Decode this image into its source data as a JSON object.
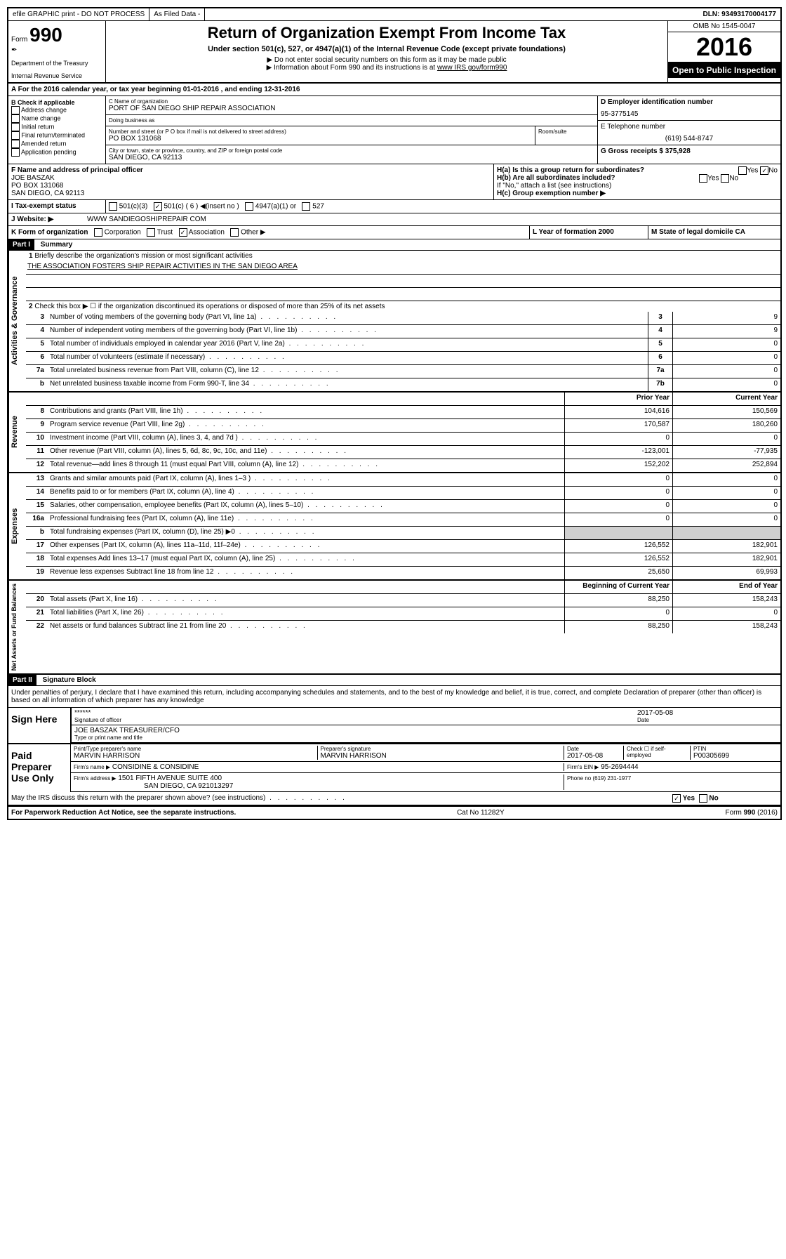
{
  "topbar": {
    "efile": "efile GRAPHIC print - DO NOT PROCESS",
    "asfiled": "As Filed Data -",
    "dln": "DLN: 93493170004177"
  },
  "header": {
    "form_prefix": "Form",
    "form_number": "990",
    "dept1": "Department of the Treasury",
    "dept2": "Internal Revenue Service",
    "title": "Return of Organization Exempt From Income Tax",
    "subtitle": "Under section 501(c), 527, or 4947(a)(1) of the Internal Revenue Code (except private foundations)",
    "note1": "▶ Do not enter social security numbers on this form as it may be made public",
    "note2": "▶ Information about Form 990 and its instructions is at ",
    "note2_link": "www IRS gov/form990",
    "omb": "OMB No 1545-0047",
    "year": "2016",
    "open_public": "Open to Public Inspection"
  },
  "section_a": "A  For the 2016 calendar year, or tax year beginning 01-01-2016   , and ending 12-31-2016",
  "col_b": {
    "title": "B Check if applicable",
    "opt1": "Address change",
    "opt2": "Name change",
    "opt3": "Initial return",
    "opt4": "Final return/terminated",
    "opt5": "Amended return",
    "opt6": "Application pending"
  },
  "col_c": {
    "name_label": "C Name of organization",
    "name": "PORT OF SAN DIEGO SHIP REPAIR ASSOCIATION",
    "dba_label": "Doing business as",
    "addr_label": "Number and street (or P O  box if mail is not delivered to street address)",
    "room_label": "Room/suite",
    "addr": "PO BOX 131068",
    "city_label": "City or town, state or province, country, and ZIP or foreign postal code",
    "city": "SAN DIEGO, CA  92113",
    "officer_label": "F  Name and address of principal officer",
    "officer_name": "JOE BASZAK",
    "officer_addr1": "PO BOX 131068",
    "officer_addr2": "SAN DIEGO, CA  92113"
  },
  "col_d": {
    "ein_label": "D Employer identification number",
    "ein": "95-3775145",
    "phone_label": "E Telephone number",
    "phone": "(619) 544-8747",
    "gross_label": "G Gross receipts $ 375,928"
  },
  "h_section": {
    "ha": "H(a)  Is this a group return for subordinates?",
    "hb": "H(b)  Are all subordinates included?",
    "hb_note": "If \"No,\" attach a list  (see instructions)",
    "hc": "H(c)  Group exemption number ▶"
  },
  "row_i": {
    "label": "I   Tax-exempt status",
    "opt1": "501(c)(3)",
    "opt2": "501(c) ( 6 ) ◀(insert no )",
    "opt3": "4947(a)(1) or",
    "opt4": "527"
  },
  "row_j": {
    "label": "J   Website: ▶",
    "value": "WWW SANDIEGOSHIPREPAIR COM"
  },
  "row_k": {
    "label": "K Form of organization",
    "opt1": "Corporation",
    "opt2": "Trust",
    "opt3": "Association",
    "opt4": "Other ▶",
    "l_label": "L Year of formation  2000",
    "m_label": "M State of legal domicile  CA"
  },
  "part1": {
    "header": "Part I",
    "title": "Summary",
    "q1_label": "1",
    "q1": "Briefly describe the organization's mission or most significant activities",
    "q1_ans": "THE ASSOCIATION FOSTERS SHIP REPAIR ACTIVITIES IN THE SAN DIEGO AREA",
    "q2": "Check this box ▶ ☐  if the organization discontinued its operations or disposed of more than 25% of its net assets",
    "rows_ag": [
      {
        "n": "3",
        "d": "Number of voting members of the governing body (Part VI, line 1a)",
        "b": "3",
        "v": "9"
      },
      {
        "n": "4",
        "d": "Number of independent voting members of the governing body (Part VI, line 1b)",
        "b": "4",
        "v": "9"
      },
      {
        "n": "5",
        "d": "Total number of individuals employed in calendar year 2016 (Part V, line 2a)",
        "b": "5",
        "v": "0"
      },
      {
        "n": "6",
        "d": "Total number of volunteers (estimate if necessary)",
        "b": "6",
        "v": "0"
      },
      {
        "n": "7a",
        "d": "Total unrelated business revenue from Part VIII, column (C), line 12",
        "b": "7a",
        "v": "0"
      },
      {
        "n": "b",
        "d": "Net unrelated business taxable income from Form 990-T, line 34",
        "b": "7b",
        "v": "0"
      }
    ],
    "col_headers": {
      "prior": "Prior Year",
      "current": "Current Year"
    },
    "revenue": [
      {
        "n": "8",
        "d": "Contributions and grants (Part VIII, line 1h)",
        "p": "104,616",
        "c": "150,569"
      },
      {
        "n": "9",
        "d": "Program service revenue (Part VIII, line 2g)",
        "p": "170,587",
        "c": "180,260"
      },
      {
        "n": "10",
        "d": "Investment income (Part VIII, column (A), lines 3, 4, and 7d )",
        "p": "0",
        "c": "0"
      },
      {
        "n": "11",
        "d": "Other revenue (Part VIII, column (A), lines 5, 6d, 8c, 9c, 10c, and 11e)",
        "p": "-123,001",
        "c": "-77,935"
      },
      {
        "n": "12",
        "d": "Total revenue—add lines 8 through 11 (must equal Part VIII, column (A), line 12)",
        "p": "152,202",
        "c": "252,894"
      }
    ],
    "expenses": [
      {
        "n": "13",
        "d": "Grants and similar amounts paid (Part IX, column (A), lines 1–3 )",
        "p": "0",
        "c": "0"
      },
      {
        "n": "14",
        "d": "Benefits paid to or for members (Part IX, column (A), line 4)",
        "p": "0",
        "c": "0"
      },
      {
        "n": "15",
        "d": "Salaries, other compensation, employee benefits (Part IX, column (A), lines 5–10)",
        "p": "0",
        "c": "0"
      },
      {
        "n": "16a",
        "d": "Professional fundraising fees (Part IX, column (A), line 11e)",
        "p": "0",
        "c": "0"
      },
      {
        "n": "b",
        "d": "Total fundraising expenses (Part IX, column (D), line 25) ▶0",
        "p": "",
        "c": ""
      },
      {
        "n": "17",
        "d": "Other expenses (Part IX, column (A), lines 11a–11d, 11f–24e)",
        "p": "126,552",
        "c": "182,901"
      },
      {
        "n": "18",
        "d": "Total expenses  Add lines 13–17 (must equal Part IX, column (A), line 25)",
        "p": "126,552",
        "c": "182,901"
      },
      {
        "n": "19",
        "d": "Revenue less expenses  Subtract line 18 from line 12",
        "p": "25,650",
        "c": "69,993"
      }
    ],
    "net_headers": {
      "beg": "Beginning of Current Year",
      "end": "End of Year"
    },
    "netassets": [
      {
        "n": "20",
        "d": "Total assets (Part X, line 16)",
        "p": "88,250",
        "c": "158,243"
      },
      {
        "n": "21",
        "d": "Total liabilities (Part X, line 26)",
        "p": "0",
        "c": "0"
      },
      {
        "n": "22",
        "d": "Net assets or fund balances  Subtract line 21 from line 20",
        "p": "88,250",
        "c": "158,243"
      }
    ]
  },
  "part2": {
    "header": "Part II",
    "title": "Signature Block",
    "declaration": "Under penalties of perjury, I declare that I have examined this return, including accompanying schedules and statements, and to the best of my knowledge and belief, it is true, correct, and complete  Declaration of preparer (other than officer) is based on all information of which preparer has any knowledge",
    "sign_here": "Sign Here",
    "stars": "******",
    "sig_officer": "Signature of officer",
    "date": "2017-05-08",
    "officer_name": "JOE BASZAK  TREASURER/CFO",
    "type_name": "Type or print name and title",
    "paid_prep": "Paid Preparer Use Only",
    "prep_name_label": "Print/Type preparer's name",
    "prep_name": "MARVIN HARRISON",
    "prep_sig_label": "Preparer's signature",
    "prep_sig": "MARVIN HARRISON",
    "prep_date_label": "Date",
    "prep_date": "2017-05-08",
    "check_label": "Check ☐ if self-employed",
    "ptin_label": "PTIN",
    "ptin": "P00305699",
    "firm_name_label": "Firm's name      ▶",
    "firm_name": "CONSIDINE & CONSIDINE",
    "firm_ein_label": "Firm's EIN ▶",
    "firm_ein": "95-2694444",
    "firm_addr_label": "Firm's address ▶",
    "firm_addr": "1501 FIFTH AVENUE SUITE 400",
    "firm_city": "SAN DIEGO, CA  921013297",
    "firm_phone_label": "Phone no  (619) 231-1977",
    "discuss": "May the IRS discuss this return with the preparer shown above? (see instructions)",
    "yes": "Yes",
    "no": "No"
  },
  "footer": {
    "paperwork": "For Paperwork Reduction Act Notice, see the separate instructions.",
    "cat": "Cat  No  11282Y",
    "form": "Form 990 (2016)"
  }
}
